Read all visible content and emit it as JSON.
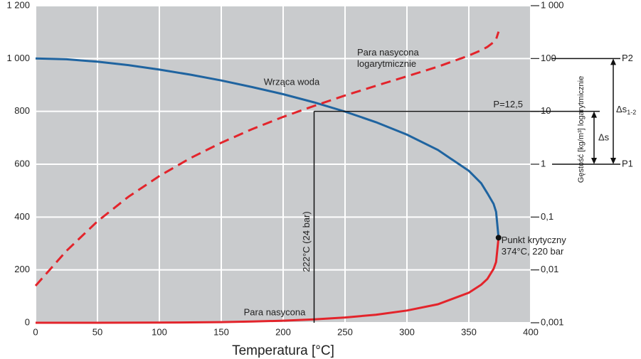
{
  "chart_data": {
    "type": "line",
    "xlabel": "Temperatura [°C]",
    "y2label": "Gęstość [kg/m³] logarytmicznie",
    "x": [
      0,
      25,
      50,
      75,
      100,
      125,
      150,
      175,
      200,
      225,
      250,
      275,
      300,
      325,
      350,
      360,
      365,
      370,
      372,
      374
    ],
    "xlim": [
      0,
      400
    ],
    "xticks": [
      0,
      50,
      100,
      150,
      200,
      250,
      300,
      350,
      400
    ],
    "ylim": [
      0,
      1200
    ],
    "yticks": [
      0,
      200,
      400,
      600,
      800,
      {
        "value": 1000,
        "label": "1 000"
      },
      {
        "value": 1200,
        "label": "1 200"
      }
    ],
    "y2lim": [
      0.001,
      1000
    ],
    "y2scale": "log",
    "y2ticks": [
      {
        "value": 0.001,
        "label": "0,001"
      },
      {
        "value": 0.01,
        "label": "0,01"
      },
      {
        "value": 0.1,
        "label": "0,1"
      },
      1,
      10,
      100,
      {
        "value": 1000,
        "label": "1 000"
      }
    ],
    "grid": true,
    "background": "#c9cbcd",
    "series": [
      {
        "name": "Wrząca woda",
        "color": "#1f64a0",
        "values": [
          1000,
          997,
          988,
          975,
          958,
          939,
          917,
          892,
          865,
          834,
          799,
          759,
          712,
          654,
          575,
          528,
          490,
          450,
          420,
          322
        ]
      },
      {
        "name": "Para nasycona",
        "color": "#e3242b",
        "values": [
          0.005,
          0.023,
          0.083,
          0.242,
          0.598,
          1.3,
          2.55,
          4.62,
          7.86,
          12.7,
          19.97,
          30.5,
          46.2,
          70.0,
          113.6,
          144,
          166,
          204,
          230,
          322
        ]
      },
      {
        "name": "Para nasycona logarytmicznie",
        "color": "#e3242b",
        "dash": true,
        "axis": "y2",
        "values": [
          0.005,
          0.023,
          0.083,
          0.242,
          0.598,
          1.3,
          2.55,
          4.62,
          7.86,
          12.7,
          19.97,
          30.5,
          46.2,
          70.0,
          113.6,
          144,
          166,
          204,
          230,
          322
        ]
      }
    ],
    "reference": {
      "x": 225,
      "y2": 10,
      "label": "P=12,5",
      "x_label": "222°C (24 bar)"
    },
    "critical_point": {
      "x": 374,
      "y": 322,
      "label": "Punkt krytyczny",
      "sublabel": "374°C, 220 bar"
    },
    "levels": [
      {
        "label": "P1",
        "y2": 1
      },
      {
        "label": "P2",
        "y2": 100
      }
    ],
    "delta_s": {
      "label": "Δs"
    },
    "delta_s12": {
      "label": "Δs",
      "sub": "1-2"
    }
  }
}
